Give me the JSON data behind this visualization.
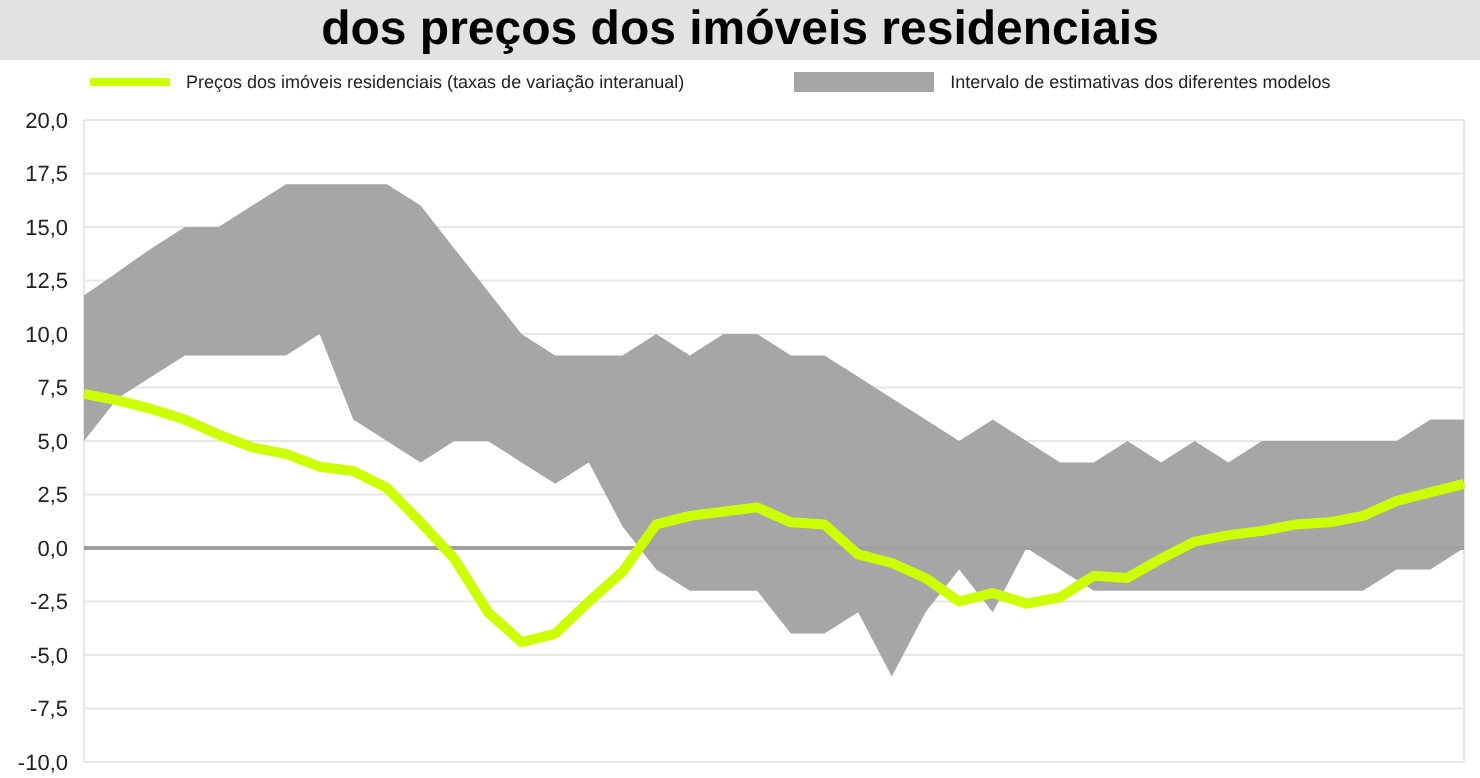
{
  "chart_data": {
    "type": "line",
    "title": "dos preços dos imóveis residenciais",
    "categories": [
      null,
      null,
      null,
      null,
      null,
      null,
      null,
      null,
      null,
      null,
      null,
      null,
      null,
      null,
      null,
      null,
      null,
      null,
      null,
      null,
      null,
      null,
      null,
      null,
      null,
      null,
      null,
      null,
      null,
      null,
      null,
      null,
      null,
      null,
      null,
      null,
      null,
      null,
      null,
      null,
      null,
      null
    ],
    "series": [
      {
        "name": "Preços dos imóveis residenciais (taxas de variação interanual)",
        "color": "#ccff00",
        "values": [
          7.2,
          6.9,
          6.5,
          6.0,
          5.3,
          4.7,
          4.4,
          3.8,
          3.6,
          2.8,
          1.2,
          -0.5,
          -3.0,
          -4.4,
          -4.0,
          -2.5,
          -1.1,
          1.1,
          1.5,
          1.7,
          1.9,
          1.2,
          1.1,
          -0.3,
          -0.7,
          -1.4,
          -2.5,
          -2.1,
          -2.6,
          -2.3,
          -1.3,
          -1.4,
          -0.5,
          0.3,
          0.6,
          0.8,
          1.1,
          1.2,
          1.5,
          2.2,
          2.6,
          3.0
        ],
        "lower": [
          5,
          7,
          8,
          9,
          9,
          9,
          9,
          10,
          6,
          5,
          4,
          5,
          5,
          4,
          3,
          4,
          1,
          -1,
          -2,
          -2,
          -2,
          -4,
          -4,
          -3,
          -6,
          -3,
          -1,
          -3,
          0,
          -1,
          -2,
          -2,
          -2,
          -2,
          -2,
          -2,
          -2,
          -2,
          -2,
          -1,
          -1,
          0
        ],
        "upper": [
          11.8,
          12.9,
          14,
          15,
          15,
          16,
          17,
          17,
          17,
          17,
          16,
          14,
          12,
          10,
          9,
          9,
          9,
          10,
          9,
          10,
          10,
          9,
          9,
          8,
          7,
          6,
          5,
          6,
          5,
          4,
          4,
          5,
          4,
          5,
          4,
          5,
          5,
          5,
          5,
          5,
          6,
          6
        ]
      }
    ],
    "annotations": [
      "Intervalo de estimativas dos diferentes modelos"
    ],
    "ylim": [
      -10,
      20
    ],
    "yticks": [
      {
        "value": -10,
        "label": "-10,0"
      },
      {
        "value": -7.5,
        "label": "-7,5"
      },
      {
        "value": -5,
        "label": "-5,0"
      },
      {
        "value": -2.5,
        "label": "-2,5"
      },
      {
        "value": 0,
        "label": "0,0"
      },
      {
        "value": 2.5,
        "label": "2,5"
      },
      {
        "value": 5,
        "label": "5,0"
      },
      {
        "value": 7.5,
        "label": "7,5"
      },
      {
        "value": 10,
        "label": "10,0"
      },
      {
        "value": 12.5,
        "label": "12,5"
      },
      {
        "value": 15,
        "label": "15,0"
      },
      {
        "value": 17.5,
        "label": "17,5"
      },
      {
        "value": 20,
        "label": "20,0"
      }
    ],
    "ref_lines": [
      {
        "axis": "y",
        "value": 0,
        "color": "#a0a0a0"
      }
    ],
    "grid": true,
    "legend": "top",
    "marker": "none",
    "line_style": "solid"
  }
}
